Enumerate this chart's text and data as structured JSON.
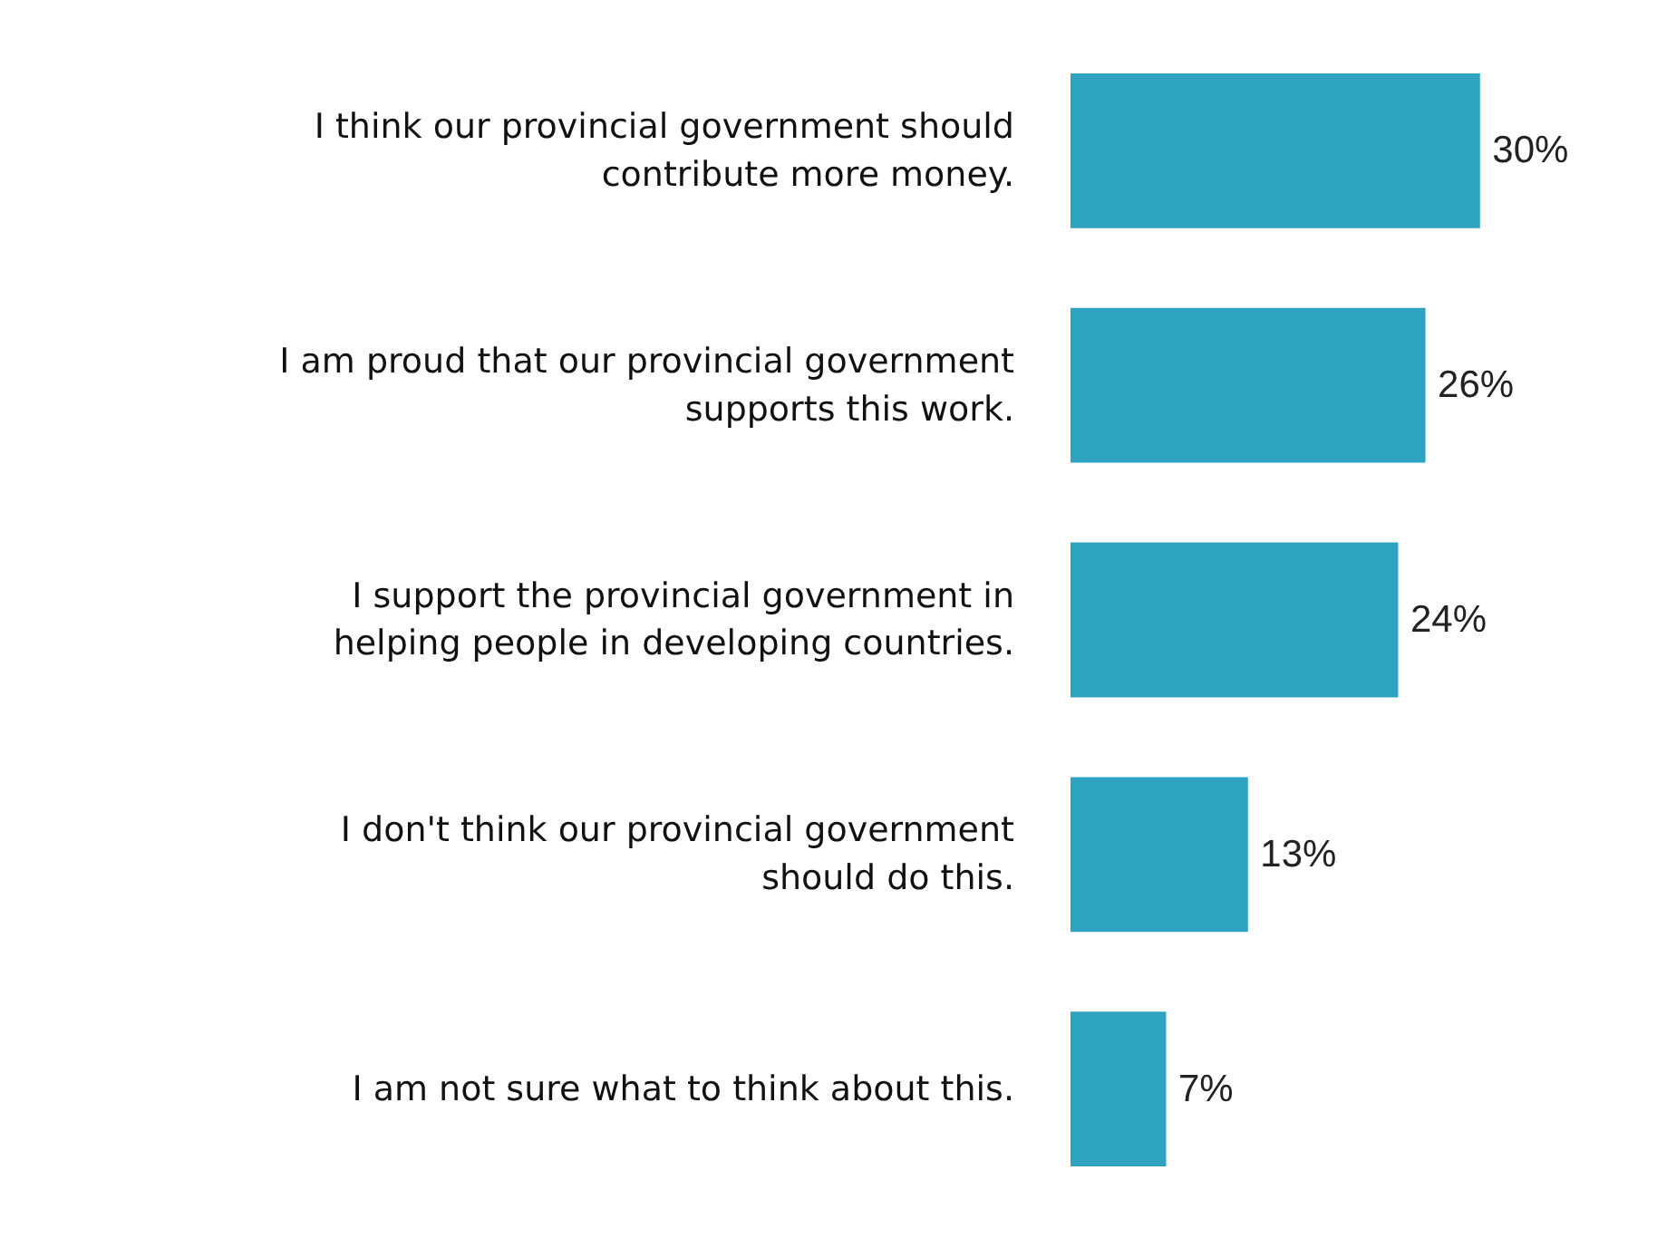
{
  "chart_data": {
    "type": "bar",
    "orientation": "horizontal",
    "categories": [
      "I think our provincial government should contribute more money.",
      "I am proud that our provincial government supports this work.",
      "I support the provincial government in helping people in developing countries.",
      "I don't think our provincial government should do this.",
      "I am not sure what to think about this."
    ],
    "values": [
      30,
      26,
      24,
      13,
      7
    ],
    "value_labels": [
      "30%",
      "26%",
      "24%",
      "13%",
      "7%"
    ],
    "color": "#2ea3c0"
  }
}
